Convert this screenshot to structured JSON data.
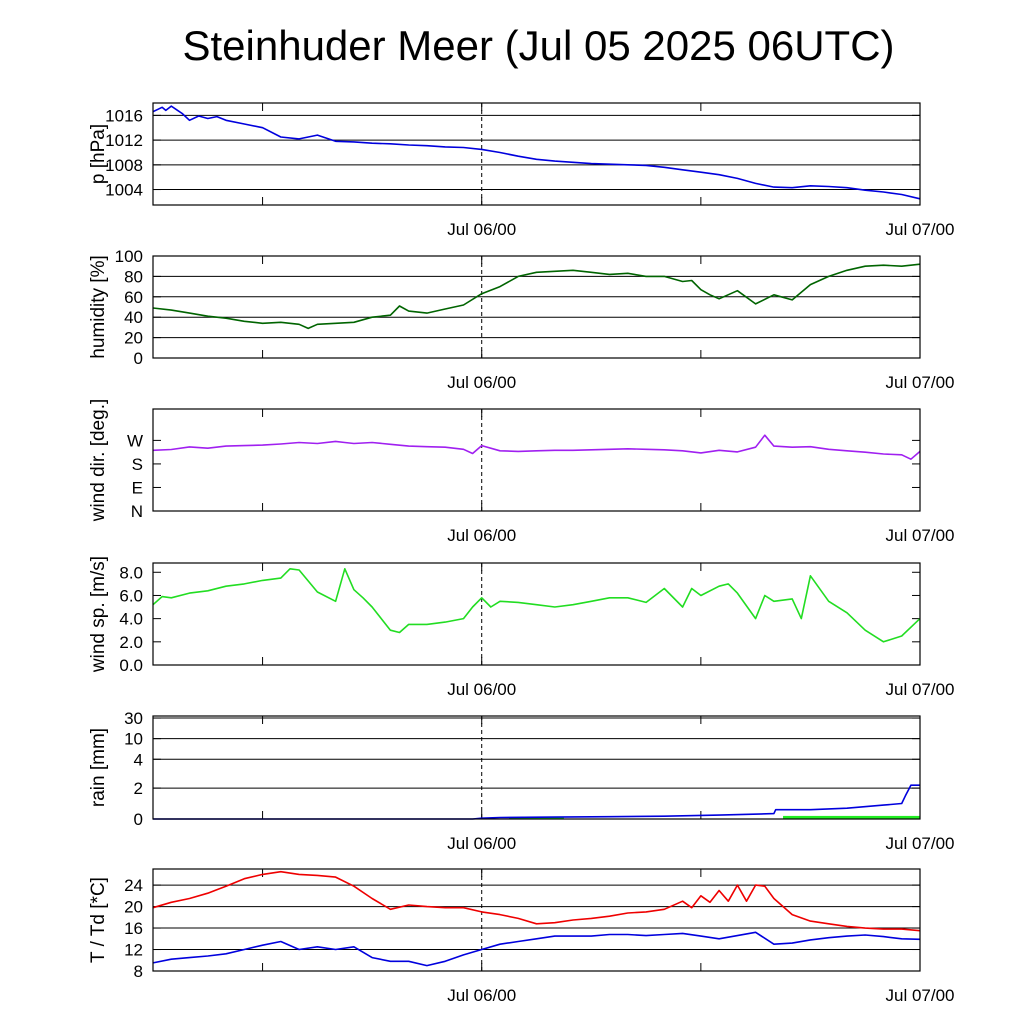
{
  "title": "Steinhuder Meer (Jul 05 2025 06UTC)",
  "x_tick_labels": [
    "Jul 06/00",
    "Jul 07/00"
  ],
  "colors": {
    "pressure": "#0000dd",
    "humidity": "#006400",
    "wind_dir": "#a020f0",
    "wind_speed": "#22dd22",
    "rain_line": "#0000dd",
    "rain_bar": "#22ee22",
    "temperature": "#ee0000",
    "dewpoint": "#0000dd"
  },
  "chart_data": [
    {
      "type": "line",
      "id": "pressure",
      "ylabel": "p [hPa]",
      "ylim": [
        1001.5,
        1018
      ],
      "grid": true,
      "yticks": [
        {
          "v": 1004,
          "label": "1004"
        },
        {
          "v": 1008,
          "label": "1008"
        },
        {
          "v": 1012,
          "label": "1012"
        },
        {
          "v": 1016,
          "label": "1016"
        }
      ],
      "x_hours": [
        0,
        42
      ],
      "x_ticks": [
        0,
        6,
        18,
        30,
        42
      ],
      "x_labels": [
        {
          "h": 18,
          "label": "Jul 06/00"
        },
        {
          "h": 42,
          "label": "Jul 07/00"
        }
      ],
      "series": [
        {
          "color": "#0000dd",
          "x": [
            0,
            0.5,
            0.7,
            1,
            1.3,
            1.6,
            2,
            2.5,
            3,
            3.5,
            4,
            5,
            6,
            7,
            8,
            9,
            10,
            11,
            12,
            13,
            14,
            15,
            16,
            17,
            18,
            19,
            20,
            21,
            22,
            23,
            24,
            25,
            26,
            27,
            28,
            29,
            30,
            31,
            32,
            33,
            34,
            35,
            36,
            37,
            38,
            39,
            40,
            41,
            42
          ],
          "y": [
            1016.6,
            1017.3,
            1016.8,
            1017.5,
            1016.9,
            1016.3,
            1015.2,
            1015.9,
            1015.5,
            1015.8,
            1015.2,
            1014.6,
            1014.0,
            1012.5,
            1012.2,
            1012.8,
            1011.8,
            1011.7,
            1011.5,
            1011.4,
            1011.2,
            1011.1,
            1010.9,
            1010.8,
            1010.5,
            1010.0,
            1009.4,
            1008.9,
            1008.6,
            1008.4,
            1008.2,
            1008.1,
            1008.0,
            1007.9,
            1007.6,
            1007.2,
            1006.8,
            1006.4,
            1005.8,
            1005.0,
            1004.4,
            1004.3,
            1004.6,
            1004.5,
            1004.3,
            1003.9,
            1003.6,
            1003.2,
            1002.5
          ]
        }
      ]
    },
    {
      "type": "line",
      "id": "humidity",
      "ylabel": "humidity [%]",
      "ylim": [
        0,
        100
      ],
      "grid": true,
      "yticks": [
        {
          "v": 0,
          "label": "0"
        },
        {
          "v": 20,
          "label": "20"
        },
        {
          "v": 40,
          "label": "40"
        },
        {
          "v": 60,
          "label": "60"
        },
        {
          "v": 80,
          "label": "80"
        },
        {
          "v": 100,
          "label": "100"
        }
      ],
      "x_hours": [
        0,
        42
      ],
      "x_ticks": [
        0,
        6,
        18,
        30,
        42
      ],
      "x_labels": [
        {
          "h": 18,
          "label": "Jul 06/00"
        },
        {
          "h": 42,
          "label": "Jul 07/00"
        }
      ],
      "series": [
        {
          "color": "#006400",
          "x": [
            0,
            1,
            2,
            3,
            4,
            5,
            6,
            7,
            8,
            8.5,
            9,
            10,
            11,
            12,
            13,
            13.5,
            14,
            15,
            16,
            17,
            18,
            19,
            20,
            21,
            22,
            23,
            24,
            25,
            26,
            27,
            28,
            29,
            29.5,
            30,
            30.5,
            31,
            32,
            33,
            34,
            35,
            36,
            37,
            38,
            39,
            40,
            41,
            42
          ],
          "y": [
            49,
            47,
            44,
            41,
            39,
            36,
            34,
            35,
            33,
            29,
            33,
            34,
            35,
            40,
            42,
            51,
            46,
            44,
            48,
            52,
            63,
            70,
            80,
            84,
            85,
            86,
            84,
            82,
            83,
            80,
            80,
            75,
            76,
            67,
            62,
            58,
            66,
            53,
            62,
            57,
            72,
            80,
            86,
            90,
            91,
            90,
            92
          ]
        }
      ]
    },
    {
      "type": "line",
      "id": "wind_dir",
      "ylabel": "wind dir. [deg.]",
      "ylim": [
        0,
        390
      ],
      "grid": false,
      "yticks": [
        {
          "v": 0,
          "label": "N"
        },
        {
          "v": 90,
          "label": "E"
        },
        {
          "v": 180,
          "label": "S"
        },
        {
          "v": 270,
          "label": "W"
        }
      ],
      "x_hours": [
        0,
        42
      ],
      "x_ticks": [
        0,
        6,
        18,
        30,
        42
      ],
      "x_labels": [
        {
          "h": 18,
          "label": "Jul 06/00"
        },
        {
          "h": 42,
          "label": "Jul 07/00"
        }
      ],
      "series": [
        {
          "color": "#a020f0",
          "x": [
            0,
            1,
            2,
            3,
            4,
            5,
            6,
            7,
            8,
            9,
            10,
            10.5,
            11,
            12,
            13,
            14,
            15,
            16,
            17,
            17.5,
            18,
            19,
            20,
            21,
            22,
            23,
            24,
            25,
            26,
            27,
            28,
            29,
            30,
            31,
            32,
            33,
            33.5,
            34,
            35,
            36,
            37,
            38,
            39,
            40,
            41,
            41.5,
            42
          ],
          "y": [
            232,
            235,
            245,
            240,
            248,
            250,
            252,
            256,
            262,
            258,
            266,
            262,
            258,
            262,
            255,
            248,
            246,
            244,
            236,
            220,
            250,
            230,
            228,
            230,
            232,
            232,
            234,
            236,
            238,
            236,
            234,
            230,
            222,
            232,
            226,
            244,
            290,
            248,
            244,
            246,
            236,
            230,
            225,
            218,
            215,
            198,
            228
          ]
        }
      ]
    },
    {
      "type": "line",
      "id": "wind_speed",
      "ylabel": "wind sp. [m/s]",
      "ylim": [
        0,
        8.8
      ],
      "grid": false,
      "yticks": [
        {
          "v": 0,
          "label": "0.0"
        },
        {
          "v": 2,
          "label": "2.0"
        },
        {
          "v": 4,
          "label": "4.0"
        },
        {
          "v": 6,
          "label": "6.0"
        },
        {
          "v": 8,
          "label": "8.0"
        }
      ],
      "x_hours": [
        0,
        42
      ],
      "x_ticks": [
        0,
        6,
        18,
        30,
        42
      ],
      "x_labels": [
        {
          "h": 18,
          "label": "Jul 06/00"
        },
        {
          "h": 42,
          "label": "Jul 07/00"
        }
      ],
      "series": [
        {
          "color": "#22dd22",
          "x": [
            0,
            0.5,
            1,
            2,
            3,
            4,
            5,
            6,
            7,
            7.5,
            8,
            9,
            10,
            10.5,
            11,
            11.5,
            12,
            13,
            13.5,
            14,
            15,
            16,
            17,
            17.5,
            18,
            18.5,
            19,
            20,
            21,
            22,
            23,
            24,
            25,
            26,
            27,
            28,
            29,
            29.5,
            30,
            31,
            31.5,
            32,
            33,
            33.5,
            34,
            35,
            35.5,
            36,
            37,
            38,
            39,
            40,
            41,
            42
          ],
          "y": [
            5.2,
            5.9,
            5.8,
            6.2,
            6.4,
            6.8,
            7.0,
            7.3,
            7.5,
            8.3,
            8.2,
            6.3,
            5.5,
            8.3,
            6.5,
            5.8,
            5.0,
            3.0,
            2.8,
            3.5,
            3.5,
            3.7,
            4.0,
            5.0,
            5.8,
            5.0,
            5.5,
            5.4,
            5.2,
            5.0,
            5.2,
            5.5,
            5.8,
            5.8,
            5.4,
            6.6,
            5.0,
            6.6,
            6.0,
            6.8,
            7.0,
            6.2,
            4.0,
            6.0,
            5.5,
            5.7,
            4.0,
            7.7,
            5.5,
            4.5,
            3.0,
            2.0,
            2.5,
            4.0
          ]
        }
      ]
    },
    {
      "type": "line",
      "id": "rain",
      "ylabel": "rain [mm]",
      "grid": true,
      "yticks": [
        {
          "v": 0,
          "label": "0"
        },
        {
          "v": 2,
          "label": "2"
        },
        {
          "v": 4,
          "label": "4"
        },
        {
          "v": 10,
          "label": "10"
        },
        {
          "v": 30,
          "label": "30"
        }
      ],
      "x_hours": [
        0,
        42
      ],
      "x_ticks": [
        0,
        6,
        18,
        30,
        42
      ],
      "x_labels": [
        {
          "h": 18,
          "label": "Jul 06/00"
        },
        {
          "h": 42,
          "label": "Jul 07/00"
        }
      ],
      "bars": [
        {
          "from": 19.5,
          "to": 22.5,
          "value": 0.1
        },
        {
          "from": 34.5,
          "to": 42,
          "value": 0.2
        }
      ],
      "series": [
        {
          "color": "#0000dd",
          "x": [
            0,
            17.5,
            18,
            19,
            22,
            25,
            28,
            31,
            34,
            34.1,
            36,
            38,
            40,
            41,
            41.2,
            41.5,
            42
          ],
          "y": [
            0,
            0,
            0.05,
            0.1,
            0.12,
            0.15,
            0.18,
            0.25,
            0.35,
            0.6,
            0.6,
            0.7,
            0.9,
            1.0,
            1.5,
            2.2,
            2.2
          ]
        }
      ]
    },
    {
      "type": "line",
      "id": "temperature",
      "ylabel": "T / Td [*C]",
      "ylim": [
        8,
        27
      ],
      "grid": true,
      "yticks": [
        {
          "v": 8,
          "label": "8"
        },
        {
          "v": 12,
          "label": "12"
        },
        {
          "v": 16,
          "label": "16"
        },
        {
          "v": 20,
          "label": "20"
        },
        {
          "v": 24,
          "label": "24"
        }
      ],
      "x_hours": [
        0,
        42
      ],
      "x_ticks": [
        0,
        6,
        18,
        30,
        42
      ],
      "x_labels": [
        {
          "h": 18,
          "label": "Jul 06/00"
        },
        {
          "h": 42,
          "label": "Jul 07/00"
        }
      ],
      "series": [
        {
          "name": "T",
          "color": "#ee0000",
          "x": [
            0,
            1,
            2,
            3,
            4,
            5,
            6,
            7,
            8,
            9,
            10,
            11,
            12,
            13,
            14,
            15,
            16,
            17,
            18,
            19,
            20,
            21,
            22,
            23,
            24,
            25,
            26,
            27,
            28,
            29,
            29.5,
            30,
            30.5,
            31,
            31.5,
            32,
            32.5,
            33,
            33.5,
            34,
            35,
            36,
            37,
            38,
            39,
            40,
            41,
            42
          ],
          "y": [
            19.8,
            20.8,
            21.5,
            22.5,
            23.8,
            25.2,
            26.0,
            26.5,
            26.0,
            25.8,
            25.5,
            23.8,
            21.5,
            19.5,
            20.3,
            20.0,
            19.8,
            19.8,
            19.0,
            18.5,
            17.8,
            16.8,
            17.0,
            17.5,
            17.8,
            18.2,
            18.8,
            19.0,
            19.5,
            21.0,
            19.8,
            22.0,
            20.8,
            23.0,
            21.0,
            24.0,
            21.0,
            24.0,
            23.8,
            21.5,
            18.5,
            17.3,
            16.8,
            16.3,
            16.0,
            15.8,
            15.8,
            15.5
          ]
        },
        {
          "name": "Td",
          "color": "#0000dd",
          "x": [
            0,
            1,
            2,
            3,
            4,
            5,
            6,
            7,
            8,
            9,
            10,
            11,
            12,
            13,
            14,
            15,
            16,
            17,
            18,
            19,
            20,
            21,
            22,
            23,
            24,
            25,
            26,
            27,
            28,
            29,
            30,
            31,
            32,
            33,
            34,
            35,
            36,
            37,
            38,
            39,
            40,
            41,
            42
          ],
          "y": [
            9.5,
            10.2,
            10.5,
            10.8,
            11.2,
            12.0,
            12.8,
            13.5,
            12.0,
            12.5,
            12.0,
            12.5,
            10.5,
            9.8,
            9.8,
            9.0,
            9.8,
            11.0,
            12.0,
            13.0,
            13.5,
            14.0,
            14.5,
            14.5,
            14.5,
            14.8,
            14.8,
            14.6,
            14.8,
            15.0,
            14.5,
            14.0,
            14.6,
            15.2,
            13.0,
            13.2,
            13.8,
            14.2,
            14.5,
            14.7,
            14.4,
            14.0,
            13.9
          ]
        }
      ]
    }
  ]
}
